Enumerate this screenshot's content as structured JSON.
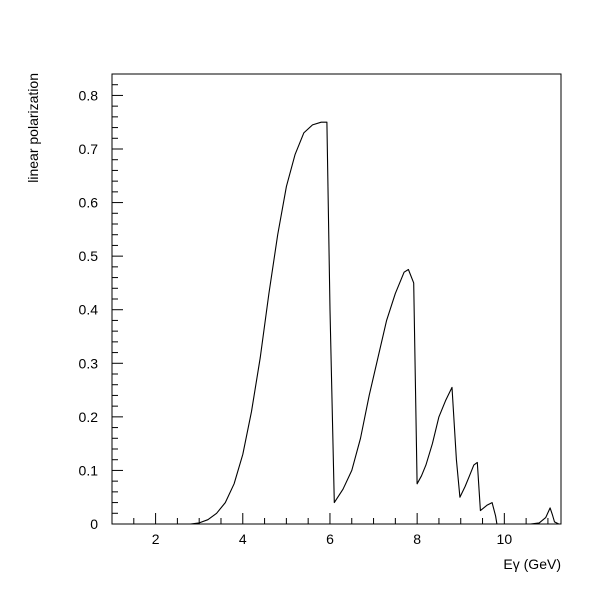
{
  "chart_data": {
    "type": "line",
    "title": "",
    "xlabel": "Eγ (GeV)",
    "ylabel": "linear polarization",
    "xlim": [
      1,
      11.3
    ],
    "ylim": [
      0,
      0.84
    ],
    "x_ticks": [
      2,
      4,
      6,
      8,
      10
    ],
    "x_tick_labels": [
      "2",
      "4",
      "6",
      "8",
      "10"
    ],
    "y_ticks": [
      0,
      0.1,
      0.2,
      0.3,
      0.4,
      0.5,
      0.6,
      0.7,
      0.8
    ],
    "y_tick_labels": [
      "0",
      "0.1",
      "0.2",
      "0.3",
      "0.4",
      "0.5",
      "0.6",
      "0.7",
      "0.8"
    ],
    "grid": false,
    "legend": "none",
    "line_color": "#000000",
    "series": [
      {
        "x": [
          2.6,
          2.8,
          3.0,
          3.2,
          3.4,
          3.6,
          3.8,
          4.0,
          4.2,
          4.4,
          4.6,
          4.8,
          5.0,
          5.2,
          5.4,
          5.6,
          5.8,
          5.93,
          6.0,
          6.1,
          6.3,
          6.5,
          6.7,
          6.9,
          7.1,
          7.3,
          7.5,
          7.7,
          7.8,
          7.92,
          8.0,
          8.1,
          8.2,
          8.35,
          8.5,
          8.65,
          8.8,
          8.9,
          8.98,
          9.1,
          9.2,
          9.3,
          9.38,
          9.45,
          9.6,
          9.72,
          9.8,
          9.83,
          10.0,
          10.3,
          10.6,
          10.8,
          10.95,
          11.05,
          11.1,
          11.15,
          11.25,
          11.3
        ],
        "y": [
          0.0,
          0.0,
          0.002,
          0.008,
          0.02,
          0.04,
          0.075,
          0.13,
          0.21,
          0.31,
          0.43,
          0.54,
          0.63,
          0.69,
          0.73,
          0.745,
          0.75,
          0.75,
          0.4,
          0.04,
          0.065,
          0.1,
          0.16,
          0.24,
          0.31,
          0.38,
          0.43,
          0.47,
          0.475,
          0.45,
          0.075,
          0.09,
          0.11,
          0.15,
          0.2,
          0.23,
          0.255,
          0.12,
          0.05,
          0.07,
          0.09,
          0.11,
          0.115,
          0.025,
          0.035,
          0.04,
          0.015,
          0.0,
          0.0,
          0.0,
          0.0,
          0.002,
          0.012,
          0.03,
          0.018,
          0.004,
          0.0,
          0.0
        ]
      }
    ]
  }
}
